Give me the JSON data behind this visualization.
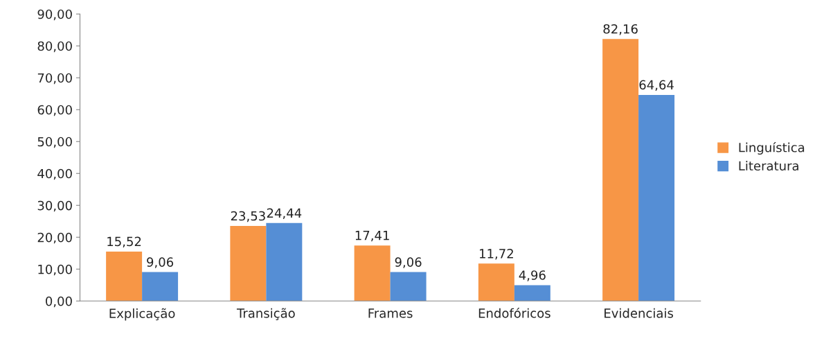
{
  "chart_data": {
    "type": "bar",
    "categories": [
      "Explicação",
      "Transição",
      "Frames",
      "Endofóricos",
      "Evidenciais"
    ],
    "series": [
      {
        "name": "Linguística",
        "color": "#f79646",
        "values": [
          15.52,
          23.53,
          17.41,
          11.72,
          82.16
        ],
        "value_labels": [
          "15,52",
          "23,53",
          "17,41",
          "11,72",
          "82,16"
        ]
      },
      {
        "name": "Literatura",
        "color": "#558ed5",
        "values": [
          9.06,
          24.44,
          9.06,
          4.96,
          64.64
        ],
        "value_labels": [
          "9,06",
          "24,44",
          "9,06",
          "4,96",
          "64,64"
        ]
      }
    ],
    "ylim": [
      0,
      90
    ],
    "yticks": [
      {
        "value": 0,
        "label": "0,00"
      },
      {
        "value": 10,
        "label": "10,00"
      },
      {
        "value": 20,
        "label": "20,00"
      },
      {
        "value": 30,
        "label": "30,00"
      },
      {
        "value": 40,
        "label": "40,00"
      },
      {
        "value": 50,
        "label": "50,00"
      },
      {
        "value": 60,
        "label": "60,00"
      },
      {
        "value": 70,
        "label": "70,00"
      },
      {
        "value": 80,
        "label": "80,00"
      },
      {
        "value": 90,
        "label": "90,00"
      }
    ],
    "grid": false,
    "legend": "right"
  }
}
